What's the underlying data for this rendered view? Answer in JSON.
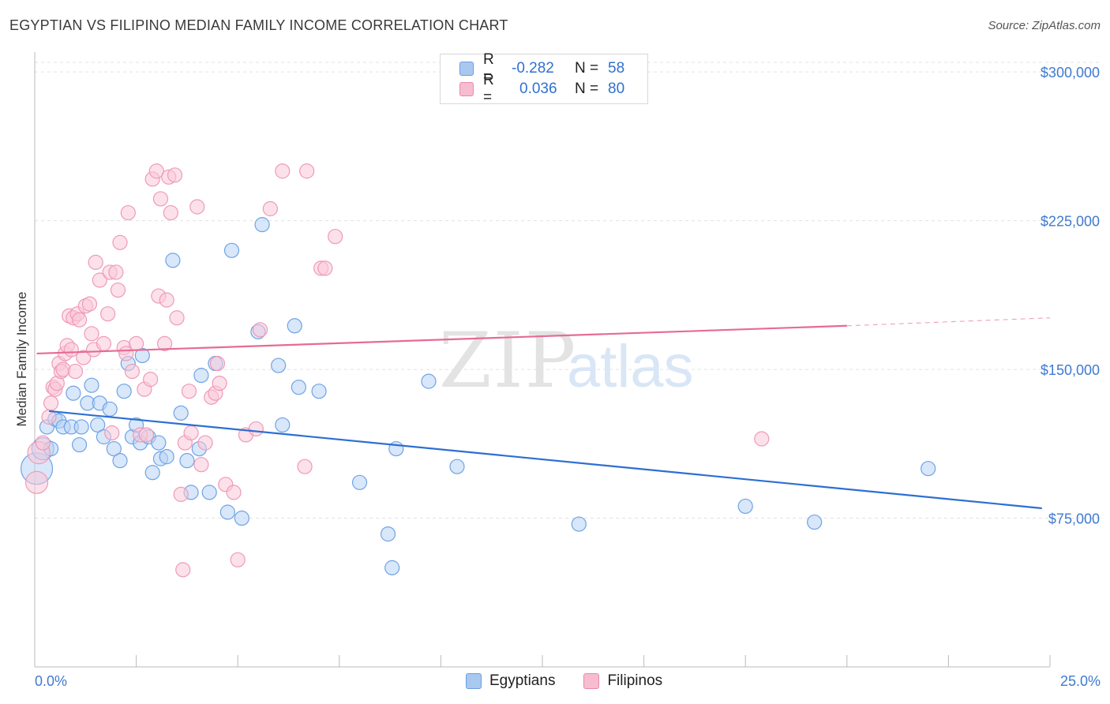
{
  "title": "EGYPTIAN VS FILIPINO MEDIAN FAMILY INCOME CORRELATION CHART",
  "source": "Source: ZipAtlas.com",
  "watermark": {
    "zip": "ZIP",
    "atlas": "atlas"
  },
  "legend": {
    "rows": [
      {
        "r_label": "R =",
        "r_value": "-0.282",
        "n_label": "N =",
        "n_value": "58",
        "color": "#a9c8f0",
        "stroke": "#6b9de0"
      },
      {
        "r_label": "R =",
        "r_value": "0.036",
        "n_label": "N =",
        "n_value": "80",
        "color": "#f7bcd0",
        "stroke": "#e88aa8"
      }
    ]
  },
  "bottom_legend": [
    {
      "label": "Egyptians",
      "color": "#a9c8f0",
      "stroke": "#6b9de0"
    },
    {
      "label": "Filipinos",
      "color": "#f7bcd0",
      "stroke": "#e88aa8"
    }
  ],
  "chart_data": {
    "type": "scatter",
    "title": "EGYPTIAN VS FILIPINO MEDIAN FAMILY INCOME CORRELATION CHART",
    "xlabel": "",
    "ylabel": "Median Family Income",
    "xlim": [
      0,
      25
    ],
    "ylim": [
      0,
      310000
    ],
    "x_tick_labels": [
      "0.0%",
      "25.0%"
    ],
    "y_ticks": [
      75000,
      150000,
      225000,
      300000
    ],
    "y_tick_labels": [
      "$75,000",
      "$150,000",
      "$225,000",
      "$300,000"
    ],
    "grid": true,
    "series": [
      {
        "name": "Egyptians",
        "color": "#6fa3e6",
        "fill": "#b8d3f4",
        "trend_color": "#2d6fd2",
        "trend": {
          "x": [
            0.35,
            24.8
          ],
          "y": [
            129000,
            80000
          ]
        },
        "points": [
          {
            "x": 0.05,
            "y": 100000,
            "s": 3
          },
          {
            "x": 0.2,
            "y": 110000,
            "s": 2
          },
          {
            "x": 0.3,
            "y": 121000,
            "s": 1
          },
          {
            "x": 0.4,
            "y": 110000,
            "s": 1
          },
          {
            "x": 0.5,
            "y": 125000,
            "s": 1
          },
          {
            "x": 0.6,
            "y": 124000,
            "s": 1
          },
          {
            "x": 0.7,
            "y": 121000,
            "s": 1
          },
          {
            "x": 0.9,
            "y": 121000,
            "s": 1
          },
          {
            "x": 0.95,
            "y": 138000,
            "s": 1
          },
          {
            "x": 1.1,
            "y": 112000,
            "s": 1
          },
          {
            "x": 1.15,
            "y": 121000,
            "s": 1
          },
          {
            "x": 1.3,
            "y": 133000,
            "s": 1
          },
          {
            "x": 1.4,
            "y": 142000,
            "s": 1
          },
          {
            "x": 1.55,
            "y": 122000,
            "s": 1
          },
          {
            "x": 1.6,
            "y": 133000,
            "s": 1
          },
          {
            "x": 1.7,
            "y": 116000,
            "s": 1
          },
          {
            "x": 1.85,
            "y": 130000,
            "s": 1
          },
          {
            "x": 1.95,
            "y": 110000,
            "s": 1
          },
          {
            "x": 2.1,
            "y": 104000,
            "s": 1
          },
          {
            "x": 2.2,
            "y": 139000,
            "s": 1
          },
          {
            "x": 2.3,
            "y": 153000,
            "s": 1
          },
          {
            "x": 2.4,
            "y": 116000,
            "s": 1
          },
          {
            "x": 2.5,
            "y": 122000,
            "s": 1
          },
          {
            "x": 2.6,
            "y": 113000,
            "s": 1
          },
          {
            "x": 2.65,
            "y": 157000,
            "s": 1
          },
          {
            "x": 2.8,
            "y": 116000,
            "s": 1
          },
          {
            "x": 2.9,
            "y": 98000,
            "s": 1
          },
          {
            "x": 3.05,
            "y": 113000,
            "s": 1
          },
          {
            "x": 3.1,
            "y": 105000,
            "s": 1
          },
          {
            "x": 3.25,
            "y": 106000,
            "s": 1
          },
          {
            "x": 3.4,
            "y": 205000,
            "s": 1
          },
          {
            "x": 3.6,
            "y": 128000,
            "s": 1
          },
          {
            "x": 3.75,
            "y": 104000,
            "s": 1
          },
          {
            "x": 3.85,
            "y": 88000,
            "s": 1
          },
          {
            "x": 4.05,
            "y": 110000,
            "s": 1
          },
          {
            "x": 4.1,
            "y": 147000,
            "s": 1
          },
          {
            "x": 4.3,
            "y": 88000,
            "s": 1
          },
          {
            "x": 4.45,
            "y": 153000,
            "s": 1
          },
          {
            "x": 4.75,
            "y": 78000,
            "s": 1
          },
          {
            "x": 4.85,
            "y": 210000,
            "s": 1
          },
          {
            "x": 5.1,
            "y": 75000,
            "s": 1
          },
          {
            "x": 5.5,
            "y": 169000,
            "s": 1
          },
          {
            "x": 5.6,
            "y": 223000,
            "s": 1
          },
          {
            "x": 6.0,
            "y": 152000,
            "s": 1
          },
          {
            "x": 6.1,
            "y": 122000,
            "s": 1
          },
          {
            "x": 6.4,
            "y": 172000,
            "s": 1
          },
          {
            "x": 6.5,
            "y": 141000,
            "s": 1
          },
          {
            "x": 7.0,
            "y": 139000,
            "s": 1
          },
          {
            "x": 8.0,
            "y": 93000,
            "s": 1
          },
          {
            "x": 8.7,
            "y": 67000,
            "s": 1
          },
          {
            "x": 8.8,
            "y": 50000,
            "s": 1
          },
          {
            "x": 8.9,
            "y": 110000,
            "s": 1
          },
          {
            "x": 9.7,
            "y": 144000,
            "s": 1
          },
          {
            "x": 10.4,
            "y": 101000,
            "s": 1
          },
          {
            "x": 13.4,
            "y": 72000,
            "s": 1
          },
          {
            "x": 17.5,
            "y": 81000,
            "s": 1
          },
          {
            "x": 19.2,
            "y": 73000,
            "s": 1
          },
          {
            "x": 22.0,
            "y": 100000,
            "s": 1
          }
        ]
      },
      {
        "name": "Filipinos",
        "color": "#ef9ab6",
        "fill": "#f9c9d8",
        "trend_color": "#e66b93",
        "trend": {
          "x": [
            0.05,
            20.0
          ],
          "y": [
            158000,
            172000
          ]
        },
        "trend_extension": {
          "x": [
            20.0,
            25.0
          ],
          "y": [
            172000,
            176000
          ]
        },
        "points": [
          {
            "x": 0.05,
            "y": 93000,
            "s": 2
          },
          {
            "x": 0.1,
            "y": 108000,
            "s": 2
          },
          {
            "x": 0.2,
            "y": 113000,
            "s": 1
          },
          {
            "x": 0.35,
            "y": 126000,
            "s": 1
          },
          {
            "x": 0.4,
            "y": 133000,
            "s": 1
          },
          {
            "x": 0.45,
            "y": 141000,
            "s": 1
          },
          {
            "x": 0.5,
            "y": 140000,
            "s": 1
          },
          {
            "x": 0.55,
            "y": 143000,
            "s": 1
          },
          {
            "x": 0.6,
            "y": 153000,
            "s": 1
          },
          {
            "x": 0.65,
            "y": 149000,
            "s": 1
          },
          {
            "x": 0.7,
            "y": 150000,
            "s": 1
          },
          {
            "x": 0.75,
            "y": 158000,
            "s": 1
          },
          {
            "x": 0.8,
            "y": 162000,
            "s": 1
          },
          {
            "x": 0.85,
            "y": 177000,
            "s": 1
          },
          {
            "x": 0.9,
            "y": 160000,
            "s": 1
          },
          {
            "x": 0.95,
            "y": 176000,
            "s": 1
          },
          {
            "x": 1.0,
            "y": 149000,
            "s": 1
          },
          {
            "x": 1.05,
            "y": 178000,
            "s": 1
          },
          {
            "x": 1.1,
            "y": 175000,
            "s": 1
          },
          {
            "x": 1.2,
            "y": 156000,
            "s": 1
          },
          {
            "x": 1.25,
            "y": 182000,
            "s": 1
          },
          {
            "x": 1.35,
            "y": 183000,
            "s": 1
          },
          {
            "x": 1.4,
            "y": 168000,
            "s": 1
          },
          {
            "x": 1.45,
            "y": 160000,
            "s": 1
          },
          {
            "x": 1.5,
            "y": 204000,
            "s": 1
          },
          {
            "x": 1.6,
            "y": 195000,
            "s": 1
          },
          {
            "x": 1.7,
            "y": 163000,
            "s": 1
          },
          {
            "x": 1.8,
            "y": 178000,
            "s": 1
          },
          {
            "x": 1.85,
            "y": 199000,
            "s": 1
          },
          {
            "x": 1.9,
            "y": 118000,
            "s": 1
          },
          {
            "x": 2.0,
            "y": 199000,
            "s": 1
          },
          {
            "x": 2.05,
            "y": 190000,
            "s": 1
          },
          {
            "x": 2.1,
            "y": 214000,
            "s": 1
          },
          {
            "x": 2.2,
            "y": 161000,
            "s": 1
          },
          {
            "x": 2.25,
            "y": 158000,
            "s": 1
          },
          {
            "x": 2.3,
            "y": 229000,
            "s": 1
          },
          {
            "x": 2.4,
            "y": 149000,
            "s": 1
          },
          {
            "x": 2.5,
            "y": 163000,
            "s": 1
          },
          {
            "x": 2.6,
            "y": 117000,
            "s": 1
          },
          {
            "x": 2.7,
            "y": 140000,
            "s": 1
          },
          {
            "x": 2.75,
            "y": 117000,
            "s": 1
          },
          {
            "x": 2.85,
            "y": 145000,
            "s": 1
          },
          {
            "x": 2.9,
            "y": 246000,
            "s": 1
          },
          {
            "x": 3.0,
            "y": 250000,
            "s": 1
          },
          {
            "x": 3.05,
            "y": 187000,
            "s": 1
          },
          {
            "x": 3.1,
            "y": 236000,
            "s": 1
          },
          {
            "x": 3.2,
            "y": 163000,
            "s": 1
          },
          {
            "x": 3.25,
            "y": 185000,
            "s": 1
          },
          {
            "x": 3.3,
            "y": 247000,
            "s": 1
          },
          {
            "x": 3.35,
            "y": 229000,
            "s": 1
          },
          {
            "x": 3.45,
            "y": 248000,
            "s": 1
          },
          {
            "x": 3.5,
            "y": 176000,
            "s": 1
          },
          {
            "x": 3.6,
            "y": 87000,
            "s": 1
          },
          {
            "x": 3.65,
            "y": 49000,
            "s": 1
          },
          {
            "x": 3.7,
            "y": 113000,
            "s": 1
          },
          {
            "x": 3.8,
            "y": 139000,
            "s": 1
          },
          {
            "x": 3.85,
            "y": 118000,
            "s": 1
          },
          {
            "x": 4.0,
            "y": 232000,
            "s": 1
          },
          {
            "x": 4.1,
            "y": 102000,
            "s": 1
          },
          {
            "x": 4.2,
            "y": 113000,
            "s": 1
          },
          {
            "x": 4.35,
            "y": 136000,
            "s": 1
          },
          {
            "x": 4.45,
            "y": 138000,
            "s": 1
          },
          {
            "x": 4.5,
            "y": 153000,
            "s": 1
          },
          {
            "x": 4.55,
            "y": 143000,
            "s": 1
          },
          {
            "x": 4.7,
            "y": 92000,
            "s": 1
          },
          {
            "x": 4.9,
            "y": 88000,
            "s": 1
          },
          {
            "x": 5.0,
            "y": 54000,
            "s": 1
          },
          {
            "x": 5.2,
            "y": 117000,
            "s": 1
          },
          {
            "x": 5.45,
            "y": 120000,
            "s": 1
          },
          {
            "x": 5.55,
            "y": 170000,
            "s": 1
          },
          {
            "x": 5.8,
            "y": 231000,
            "s": 1
          },
          {
            "x": 6.1,
            "y": 250000,
            "s": 1
          },
          {
            "x": 6.65,
            "y": 101000,
            "s": 1
          },
          {
            "x": 6.7,
            "y": 250000,
            "s": 1
          },
          {
            "x": 7.05,
            "y": 201000,
            "s": 1
          },
          {
            "x": 7.15,
            "y": 201000,
            "s": 1
          },
          {
            "x": 7.4,
            "y": 217000,
            "s": 1
          },
          {
            "x": 17.9,
            "y": 115000,
            "s": 1
          }
        ]
      }
    ]
  }
}
